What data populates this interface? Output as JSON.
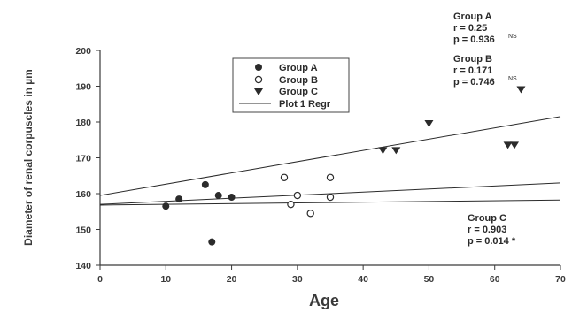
{
  "chart_data": {
    "type": "scatter",
    "xlabel": "Age",
    "ylabel": "Diameter of renal corpuscles in µm",
    "xlim": [
      0,
      70
    ],
    "ylim": [
      140,
      200
    ],
    "x_ticks": [
      0,
      10,
      20,
      30,
      40,
      50,
      60,
      70
    ],
    "y_ticks": [
      140,
      150,
      160,
      170,
      180,
      190,
      200
    ],
    "grid": false,
    "legend_position": "top-center",
    "legend": [
      {
        "label": "Group A",
        "marker": "filled-circle"
      },
      {
        "label": "Group B",
        "marker": "open-circle"
      },
      {
        "label": "Group C",
        "marker": "filled-triangle-down"
      },
      {
        "label": "Plot 1 Regr",
        "marker": "line"
      }
    ],
    "series": [
      {
        "name": "Group A",
        "marker": "filled-circle",
        "points": [
          {
            "x": 10,
            "y": 156.5
          },
          {
            "x": 12,
            "y": 158.5
          },
          {
            "x": 16,
            "y": 162.5
          },
          {
            "x": 17,
            "y": 146.5
          },
          {
            "x": 18,
            "y": 159.5
          },
          {
            "x": 20,
            "y": 159
          }
        ]
      },
      {
        "name": "Group B",
        "marker": "open-circle",
        "points": [
          {
            "x": 28,
            "y": 164.5
          },
          {
            "x": 29,
            "y": 157
          },
          {
            "x": 30,
            "y": 159.5
          },
          {
            "x": 32,
            "y": 154.5
          },
          {
            "x": 35,
            "y": 164.5
          },
          {
            "x": 35,
            "y": 159
          }
        ]
      },
      {
        "name": "Group C",
        "marker": "filled-triangle-down",
        "points": [
          {
            "x": 43,
            "y": 172
          },
          {
            "x": 45,
            "y": 172
          },
          {
            "x": 50,
            "y": 179.5
          },
          {
            "x": 62,
            "y": 173.5
          },
          {
            "x": 63,
            "y": 173.5
          },
          {
            "x": 64,
            "y": 189
          }
        ]
      }
    ],
    "regression_lines": [
      {
        "from": [
          0,
          159.5
        ],
        "to": [
          70,
          181.5
        ]
      },
      {
        "from": [
          0,
          157
        ],
        "to": [
          70,
          163
        ]
      },
      {
        "from": [
          0,
          156.8
        ],
        "to": [
          70,
          158.2
        ]
      }
    ],
    "annotations": [
      {
        "lines": [
          "Group A",
          "r = 0.25",
          "p = 0.936"
        ],
        "sup": "NS"
      },
      {
        "lines": [
          "Group B",
          "r = 0.171",
          "p = 0.746"
        ],
        "sup": "NS"
      },
      {
        "lines": [
          "Group C",
          "r = 0.903",
          "p = 0.014 *"
        ],
        "sup": ""
      }
    ]
  },
  "colors": {
    "ink": "#2b2b2b",
    "axis": "#3a3a3a",
    "background": "#ffffff"
  }
}
